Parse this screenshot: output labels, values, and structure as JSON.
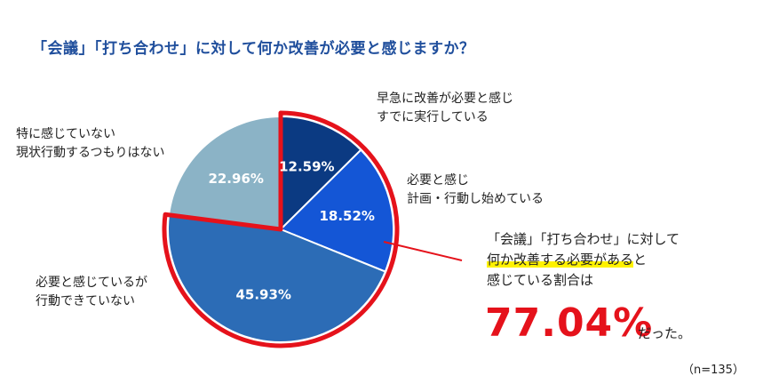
{
  "title": "「会議」「打ち合わせ」に対して何か改善が必要と感じますか？",
  "chart_data": {
    "type": "pie",
    "start_angle_deg": 0,
    "direction": "clockwise",
    "slices": [
      {
        "label_lines": [
          "早急に改善が必要と感じ",
          "すでに実行している"
        ],
        "value": 12.59,
        "value_label": "12.59%",
        "color": "#0b3a82"
      },
      {
        "label_lines": [
          "必要と感じ",
          "計画・行動し始めている"
        ],
        "value": 18.52,
        "value_label": "18.52%",
        "color": "#1456d6"
      },
      {
        "label_lines": [
          "必要と感じているが",
          "行動できていない"
        ],
        "value": 45.93,
        "value_label": "45.93%",
        "color": "#2c6cb6"
      },
      {
        "label_lines": [
          "特に感じていない",
          "現状行動するつもりはない"
        ],
        "value": 22.96,
        "value_label": "22.96%",
        "color": "#8bb3c6"
      }
    ],
    "highlight_color": "#e5121b"
  },
  "callout": {
    "line1": "「会議」「打ち合わせ」に対して",
    "line2_highlight": "何か改善する必要がある",
    "line2_rest": "と",
    "line3": "感じている割合は",
    "big_value": "77.04%",
    "suffix": "だった。"
  },
  "sample_note": "（n=135）"
}
